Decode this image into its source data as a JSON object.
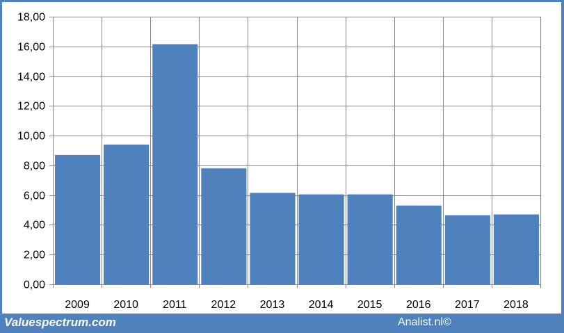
{
  "chart_data": {
    "type": "bar",
    "categories": [
      "2009",
      "2010",
      "2011",
      "2012",
      "2013",
      "2014",
      "2015",
      "2016",
      "2017",
      "2018"
    ],
    "values": [
      8.7,
      9.4,
      16.15,
      7.8,
      6.15,
      6.05,
      6.05,
      5.3,
      4.65,
      4.7
    ],
    "ylim": [
      0,
      18
    ],
    "yticks": [
      "0,00",
      "2,00",
      "4,00",
      "6,00",
      "8,00",
      "10,00",
      "12,00",
      "14,00",
      "16,00",
      "18,00"
    ],
    "grid": true,
    "title": "",
    "xlabel": "",
    "ylabel": "",
    "bar_color": "#4f81bd",
    "grid_color": "#868686"
  },
  "footer": {
    "left": "Valuespectrum.com",
    "right": "Analist.nl©"
  }
}
